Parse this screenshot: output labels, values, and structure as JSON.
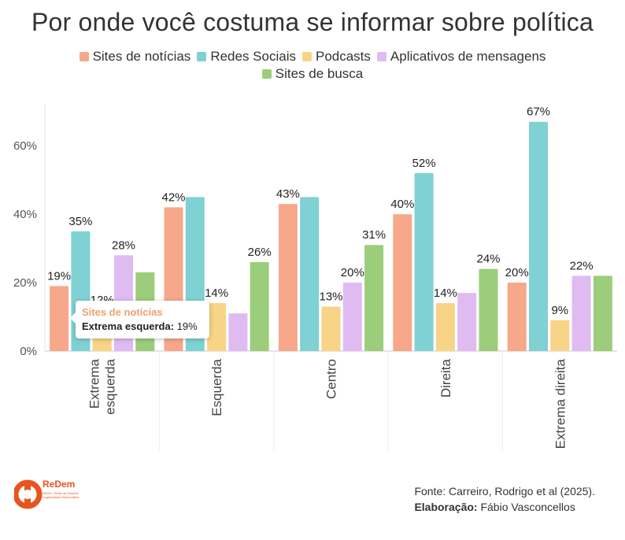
{
  "title": "Por onde você costuma se informar sobre política",
  "legend": [
    {
      "label": "Sites de notícias",
      "color": "#f7a88a"
    },
    {
      "label": "Redes Sociais",
      "color": "#7fd1d3"
    },
    {
      "label": "Podcasts",
      "color": "#f7d486"
    },
    {
      "label": "Aplicativos de mensagens",
      "color": "#dfbbf2"
    },
    {
      "label": "Sites de busca",
      "color": "#9ccd7b"
    }
  ],
  "chart_data": {
    "type": "bar",
    "title": "Por onde você costuma se informar sobre política",
    "categories": [
      "Extrema esquerda",
      "Esquerda",
      "Centro",
      "Direita",
      "Extrema direita"
    ],
    "category_display": [
      [
        "Extrema",
        "esquerda"
      ],
      [
        "Esquerda"
      ],
      [
        "Centro"
      ],
      [
        "Direita"
      ],
      [
        "Extrema direita"
      ]
    ],
    "series": [
      {
        "name": "Sites de notícias",
        "color": "#f7a88a",
        "values": [
          19,
          42,
          43,
          40,
          20
        ]
      },
      {
        "name": "Redes Sociais",
        "color": "#7fd1d3",
        "values": [
          35,
          45,
          45,
          52,
          67
        ]
      },
      {
        "name": "Podcasts",
        "color": "#f7d486",
        "values": [
          12,
          14,
          13,
          14,
          9
        ]
      },
      {
        "name": "Aplicativos de mensagens",
        "color": "#dfbbf2",
        "values": [
          28,
          11,
          20,
          17,
          22
        ]
      },
      {
        "name": "Sites de busca",
        "color": "#9ccd7b",
        "values": [
          23,
          26,
          31,
          24,
          22
        ]
      }
    ],
    "data_labels": [
      [
        "19%",
        "35%",
        "12%",
        "28%",
        ""
      ],
      [
        "42%",
        "",
        "14%",
        "",
        "26%"
      ],
      [
        "43%",
        "",
        "13%",
        "20%",
        "31%"
      ],
      [
        "40%",
        "52%",
        "14%",
        "",
        "24%"
      ],
      [
        "20%",
        "67%",
        "9%",
        "22%",
        ""
      ]
    ],
    "y_ticks": [
      0,
      20,
      40,
      60
    ],
    "y_tick_labels": [
      "0%",
      "20%",
      "40%",
      "60%"
    ],
    "ylim": [
      0,
      72
    ],
    "xlabel": "",
    "ylabel": "",
    "grid": false
  },
  "tooltip": {
    "series": "Sites de notícias",
    "category": "Extrema esquerda:",
    "value": "19%"
  },
  "logo": {
    "name": "ReDem",
    "subtitle": "REDE • Rede de Estudos Legitimidade Democrática"
  },
  "footer": {
    "source": "Fonte: Carreiro, Rodrigo et al (2025).",
    "credit_label": "Elaboração:",
    "credit_value": "Fábio Vasconcellos"
  }
}
